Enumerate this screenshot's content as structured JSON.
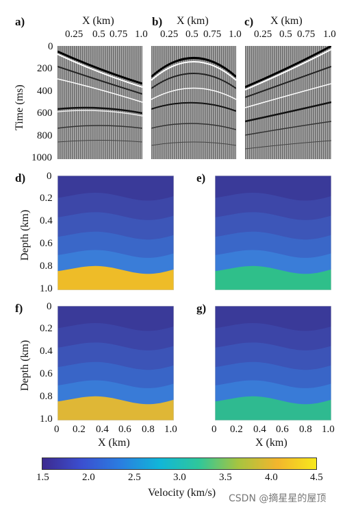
{
  "panels": {
    "a": "a)",
    "b": "b)",
    "c": "c)",
    "d": "d)",
    "e": "e)",
    "f": "f)",
    "g": "g)"
  },
  "seismic": {
    "x_label": "X (km)",
    "x_ticks": [
      "0.25",
      "0.5",
      "0.75",
      "1.0"
    ],
    "y_label": "Time (ms)",
    "y_ticks": [
      "0",
      "200",
      "400",
      "600",
      "800",
      "1000"
    ]
  },
  "velocity": {
    "y_label": "Depth (km)",
    "y_ticks": [
      "0",
      "0.2",
      "0.4",
      "0.6",
      "0.8",
      "1.0"
    ],
    "x_label": "X (km)",
    "x_ticks": [
      "0",
      "0.2",
      "0.4",
      "0.6",
      "0.8",
      "1.0"
    ]
  },
  "colorbar": {
    "label": "Velocity (km/s)",
    "ticks": [
      "1.5",
      "2.0",
      "2.5",
      "3.0",
      "3.5",
      "4.0",
      "4.5"
    ],
    "colors": [
      "#3d2a8f",
      "#3b4fd0",
      "#2a7ee0",
      "#11b6d8",
      "#2fc79a",
      "#a6c440",
      "#f2b52d",
      "#f7e81c"
    ]
  },
  "layer_colors": {
    "layers": [
      "#3a3a99",
      "#3d47a8",
      "#3d56b8",
      "#3a67c8",
      "#3a7dd8"
    ],
    "bottom_true": "#eebc28",
    "bottom_low": "#2fbf8a"
  },
  "watermark": "CSDN @摘星星的屋顶"
}
